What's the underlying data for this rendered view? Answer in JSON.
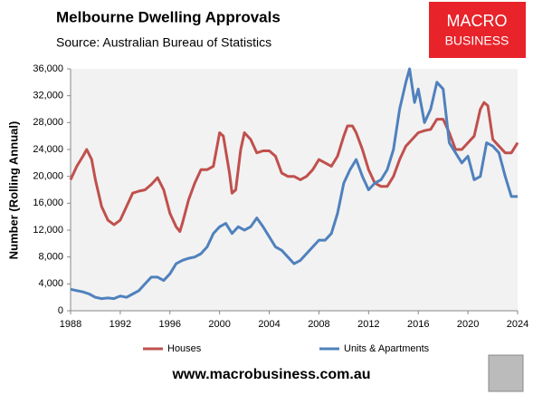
{
  "chart_data": {
    "type": "line",
    "title": "Melbourne Dwelling Approvals",
    "subtitle": "Source: Australian Bureau of Statistics",
    "logo": [
      "MACRO",
      "BUSINESS"
    ],
    "footer": "www.macrobusiness.com.au",
    "y_label": "Number (Rolling Annual)",
    "xlim": [
      1988,
      2024
    ],
    "xticks": [
      1988,
      1992,
      1996,
      2000,
      2004,
      2008,
      2012,
      2016,
      2020,
      2024
    ],
    "ylim": [
      0,
      36000
    ],
    "yticks": [
      0,
      {
        "value": 4000,
        "label": "4,000"
      },
      {
        "value": 8000,
        "label": "8,000"
      },
      {
        "value": 12000,
        "label": "12,000"
      },
      {
        "value": 16000,
        "label": "16,000"
      },
      {
        "value": 20000,
        "label": "20,000"
      },
      {
        "value": 24000,
        "label": "24,000"
      },
      {
        "value": 28000,
        "label": "28,000"
      },
      {
        "value": 32000,
        "label": "32,000"
      },
      {
        "value": 36000,
        "label": "36,000"
      }
    ],
    "legend": "bottom",
    "series": [
      {
        "name": "Houses",
        "color": "#c0504d",
        "x": [
          1988,
          1988.5,
          1989,
          1989.3,
          1989.7,
          1990,
          1990.5,
          1991,
          1991.5,
          1992,
          1992.5,
          1993,
          1993.5,
          1994,
          1994.5,
          1995,
          1995.5,
          1996,
          1996.5,
          1996.8,
          1997,
          1997.5,
          1998,
          1998.5,
          1999,
          1999.5,
          2000,
          2000.3,
          2000.8,
          2001,
          2001.3,
          2001.7,
          2002,
          2002.5,
          2003,
          2003.5,
          2004,
          2004.5,
          2005,
          2005.5,
          2006,
          2006.5,
          2007,
          2007.5,
          2008,
          2008.5,
          2009,
          2009.5,
          2010,
          2010.3,
          2010.7,
          2011,
          2011.5,
          2012,
          2012.5,
          2013,
          2013.5,
          2014,
          2014.5,
          2015,
          2015.5,
          2016,
          2016.5,
          2017,
          2017.5,
          2018,
          2018.5,
          2019,
          2019.5,
          2020,
          2020.5,
          2021,
          2021.3,
          2021.6,
          2022,
          2022.5,
          2023,
          2023.5,
          2024
        ],
        "values": [
          19500,
          21500,
          23000,
          24000,
          22500,
          19500,
          15500,
          13500,
          12800,
          13500,
          15500,
          17500,
          17800,
          18000,
          18800,
          19800,
          18000,
          14500,
          12500,
          11800,
          13000,
          16500,
          19000,
          21000,
          21000,
          21500,
          26500,
          26000,
          20500,
          17500,
          18000,
          24000,
          26500,
          25500,
          23500,
          23800,
          23800,
          23000,
          20500,
          20000,
          20000,
          19500,
          20000,
          21000,
          22500,
          22000,
          21500,
          23000,
          26000,
          27500,
          27500,
          26500,
          24000,
          21000,
          19000,
          18500,
          18500,
          20000,
          22500,
          24500,
          25500,
          26500,
          26800,
          27000,
          28500,
          28500,
          26500,
          24000,
          24000,
          25000,
          26000,
          30000,
          31000,
          30500,
          25500,
          24500,
          23500,
          23500,
          25000
        ]
      },
      {
        "name": "Units & Apartments",
        "color": "#4f81bd",
        "x": [
          1988,
          1988.5,
          1989,
          1989.5,
          1990,
          1990.5,
          1991,
          1991.5,
          1992,
          1992.5,
          1993,
          1993.5,
          1994,
          1994.5,
          1995,
          1995.5,
          1996,
          1996.5,
          1997,
          1997.5,
          1998,
          1998.5,
          1999,
          1999.5,
          2000,
          2000.5,
          2001,
          2001.5,
          2002,
          2002.5,
          2003,
          2003.5,
          2004,
          2004.5,
          2005,
          2005.5,
          2006,
          2006.5,
          2007,
          2007.5,
          2008,
          2008.5,
          2009,
          2009.5,
          2010,
          2010.5,
          2011,
          2011.5,
          2012,
          2012.5,
          2013,
          2013.5,
          2014,
          2014.5,
          2015,
          2015.3,
          2015.7,
          2016,
          2016.5,
          2017,
          2017.5,
          2018,
          2018.5,
          2019,
          2019.5,
          2020,
          2020.5,
          2021,
          2021.5,
          2022,
          2022.5,
          2023,
          2023.5,
          2024
        ],
        "values": [
          3200,
          3000,
          2800,
          2500,
          2000,
          1800,
          1900,
          1800,
          2200,
          2000,
          2500,
          3000,
          4000,
          5000,
          5000,
          4500,
          5500,
          7000,
          7500,
          7800,
          8000,
          8500,
          9500,
          11500,
          12500,
          13000,
          11500,
          12500,
          12000,
          12500,
          13800,
          12500,
          11000,
          9500,
          9000,
          8000,
          7000,
          7500,
          8500,
          9500,
          10500,
          10500,
          11500,
          14500,
          19000,
          21000,
          22500,
          20000,
          18000,
          19000,
          19500,
          21000,
          24000,
          30000,
          34000,
          36000,
          31000,
          33000,
          28000,
          30000,
          34000,
          33000,
          25000,
          23500,
          22000,
          23000,
          19500,
          20000,
          25000,
          24500,
          23500,
          20000,
          17000,
          17000
        ]
      }
    ]
  }
}
